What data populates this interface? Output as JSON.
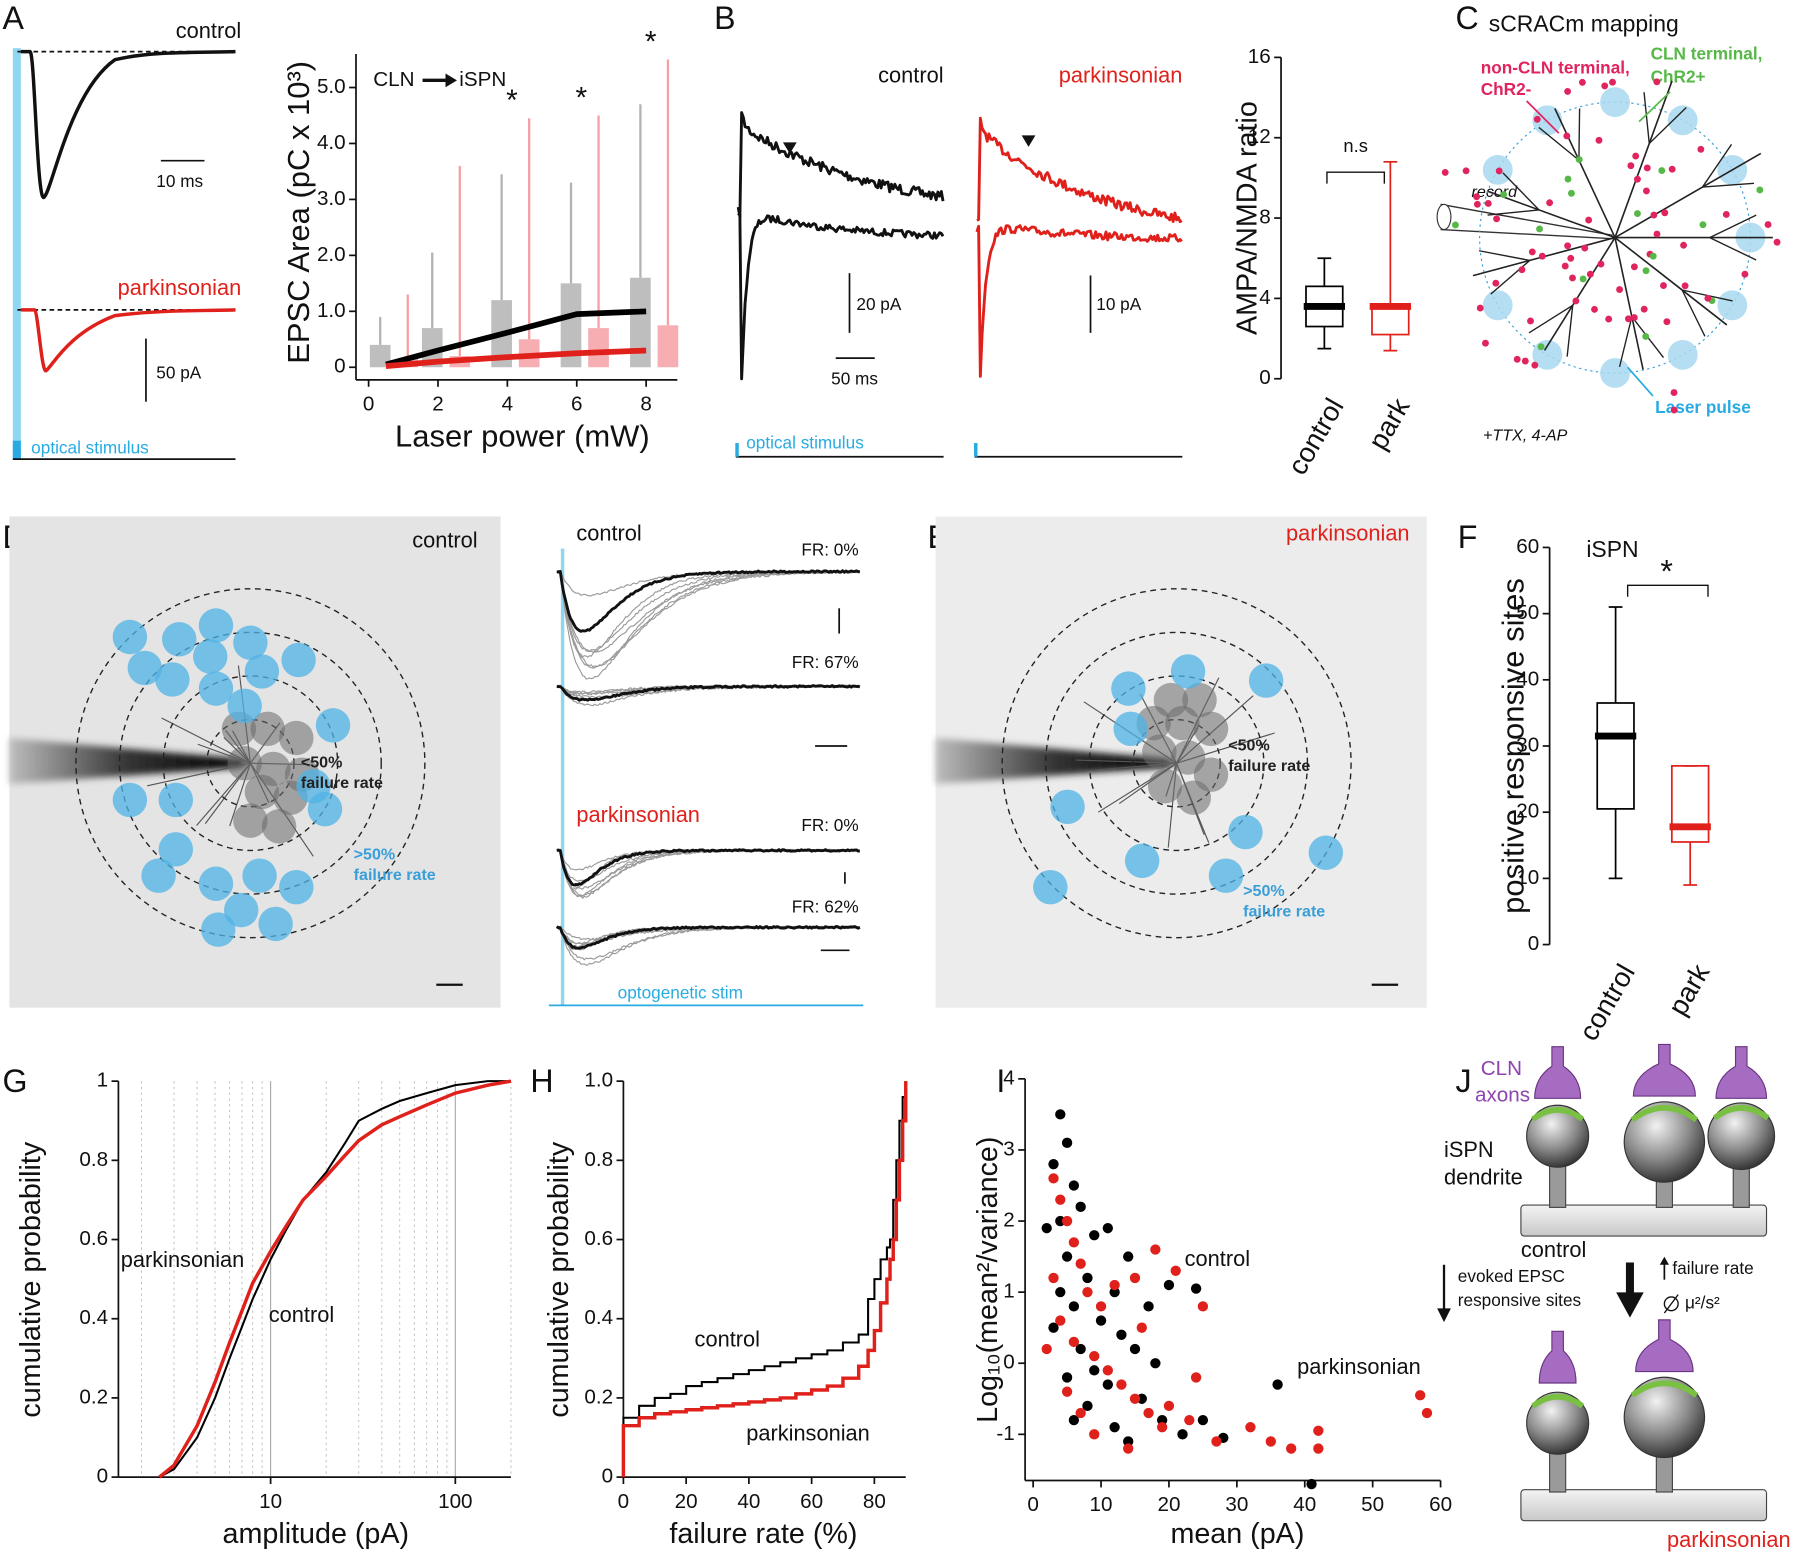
{
  "panels": [
    "A",
    "B",
    "C",
    "D",
    "E",
    "F",
    "G",
    "H",
    "I",
    "J"
  ],
  "panel_a": {
    "control": "control",
    "scale_time": "10 ms",
    "parkinsonian": "parkinsonian",
    "scale_amp": "50 pA",
    "stimulus": "optical stimulus"
  },
  "panel_b": {
    "control": "control",
    "parkinsonian": "parkinsonian",
    "scale_amp_control": "20 pA",
    "scale_time": "50 ms",
    "scale_amp_park": "10 pA",
    "stimulus": "optical stimulus"
  },
  "panel_c": {
    "title": "sCRACm mapping",
    "non_cln": [
      "non-CLN terminal,",
      "ChR2-"
    ],
    "cln": [
      "CLN terminal,",
      "ChR2+"
    ],
    "record": "record",
    "laser": "Laser pulse",
    "drugs": "+TTX, 4-AP"
  },
  "panel_d": {
    "condition": "control",
    "inner": [
      "<50%",
      "failure rate"
    ],
    "outer": [
      ">50%",
      "failure rate"
    ]
  },
  "panel_d_traces": {
    "control": "control",
    "fr": [
      "FR: 0%",
      "FR: 67%",
      "FR: 0%",
      "FR: 62%"
    ],
    "parkinsonian": "parkinsonian",
    "stimulus": "optogenetic stim"
  },
  "panel_e": {
    "condition": "parkinsonian",
    "inner": [
      "<50%",
      "failure rate"
    ],
    "outer": [
      ">50%",
      "failure rate"
    ]
  },
  "panel_j": {
    "cln": [
      "CLN",
      "axons"
    ],
    "dendrite": [
      "iSPN",
      "dendrite"
    ],
    "control": "control",
    "evoked": [
      "evoked EPSC",
      "responsive sites"
    ],
    "failure": "failure rate",
    "ratio": "μ²/s²",
    "parkinsonian": "parkinsonian"
  },
  "chart_data": [
    {
      "type": "bar",
      "label_from": "CLN",
      "label_to": "iSPN",
      "ylabel": "EPSC Area (pC x 10³)",
      "xlabel": "Laser power (mW)",
      "x": [
        0.5,
        2,
        4,
        6,
        8
      ],
      "series": [
        {
          "mark": "bar",
          "color": "#b3b3b3",
          "values": [
            0.4,
            0.7,
            1.2,
            1.5,
            1.6
          ],
          "upper": [
            0.9,
            2.05,
            3.45,
            3.3,
            4.7
          ]
        },
        {
          "mark": "bar",
          "color": "#f4a0a6",
          "values": [
            0.15,
            0.2,
            0.5,
            0.7,
            0.75
          ],
          "upper": [
            1.3,
            3.6,
            4.45,
            4.5,
            5.5
          ]
        },
        {
          "mark": "line",
          "color": "#000000",
          "values": [
            0.05,
            0.3,
            0.62,
            0.95,
            1.0
          ]
        },
        {
          "mark": "line",
          "color": "#e0201b",
          "values": [
            0.02,
            0.1,
            0.18,
            0.25,
            0.3
          ]
        }
      ],
      "annotations": [
        "*",
        "*",
        "*"
      ],
      "xlim": [
        0,
        8.9
      ],
      "xticks": [
        0,
        2,
        4,
        6,
        8
      ],
      "ylim": [
        0,
        5.6
      ],
      "yticks": [
        0,
        {
          "value": 1,
          "label": "1.0"
        },
        {
          "value": 2,
          "label": "2.0"
        },
        {
          "value": 3,
          "label": "3.0"
        },
        {
          "value": 4,
          "label": "4.0"
        },
        {
          "value": 5,
          "label": "5.0"
        }
      ]
    },
    {
      "type": "box",
      "ylabel": "AMPA/NMDA ratio",
      "categories": [
        "control",
        "park"
      ],
      "colors": [
        "#000000",
        "#e0201b"
      ],
      "min": [
        1.5,
        1.4
      ],
      "q1": [
        2.6,
        2.2
      ],
      "median": [
        3.6,
        3.6
      ],
      "q3": [
        4.6,
        3.6
      ],
      "max": [
        6.0,
        10.8
      ],
      "annotation": "n.s",
      "ylim": [
        0,
        16
      ],
      "yticks": [
        0,
        4,
        8,
        12,
        16
      ]
    },
    {
      "type": "box",
      "title": "iSPN",
      "ylabel": "positive responsive sites",
      "categories": [
        "control",
        "park"
      ],
      "colors": [
        "#000000",
        "#e0201b"
      ],
      "min": [
        10,
        9
      ],
      "q1": [
        20.5,
        15.5
      ],
      "median": [
        31.5,
        17.8
      ],
      "q3": [
        36.5,
        27
      ],
      "max": [
        51,
        27
      ],
      "annotation": "*",
      "ylim": [
        0,
        60
      ],
      "yticks": [
        0,
        10,
        20,
        30,
        40,
        50,
        60
      ]
    },
    {
      "type": "line",
      "log_x": true,
      "grid": true,
      "xlabel": "amplitude (pA)",
      "ylabel": "cumulative probability",
      "x": [
        2.5,
        3,
        4,
        5,
        6,
        7,
        8,
        10,
        12,
        15,
        20,
        25,
        30,
        40,
        50,
        70,
        100,
        150,
        200
      ],
      "series": [
        {
          "name": "control",
          "color": "#000000",
          "values": [
            0,
            0.02,
            0.1,
            0.2,
            0.3,
            0.38,
            0.45,
            0.55,
            0.62,
            0.7,
            0.77,
            0.84,
            0.9,
            0.93,
            0.95,
            0.97,
            0.99,
            1.0,
            1.0
          ]
        },
        {
          "name": "parkinsonian",
          "color": "#e0201b",
          "values": [
            0,
            0.03,
            0.13,
            0.24,
            0.34,
            0.42,
            0.49,
            0.57,
            0.63,
            0.7,
            0.76,
            0.81,
            0.85,
            0.89,
            0.91,
            0.94,
            0.97,
            0.99,
            1.0
          ]
        }
      ],
      "xlim": [
        1.5,
        200
      ],
      "xticks": [
        10,
        100
      ],
      "minor_xticks": [
        2,
        3,
        4,
        5,
        6,
        7,
        8,
        9,
        20,
        30,
        40,
        50,
        60,
        70,
        80,
        90,
        200
      ],
      "ylim": [
        0,
        1
      ],
      "yticks": [
        0,
        0.2,
        0.4,
        0.6,
        0.8,
        1
      ]
    },
    {
      "type": "step",
      "xlabel": "failure rate (%)",
      "ylabel": "cumulative probability",
      "x": [
        0,
        5,
        10,
        15,
        20,
        25,
        30,
        35,
        40,
        45,
        50,
        55,
        60,
        65,
        70,
        75,
        78,
        80,
        82,
        84,
        85,
        86,
        87,
        88,
        89,
        90
      ],
      "series": [
        {
          "name": "control",
          "color": "#000000",
          "values": [
            0.15,
            0.18,
            0.2,
            0.21,
            0.23,
            0.24,
            0.25,
            0.26,
            0.27,
            0.28,
            0.29,
            0.3,
            0.31,
            0.32,
            0.34,
            0.36,
            0.45,
            0.5,
            0.55,
            0.58,
            0.6,
            0.7,
            0.8,
            0.9,
            0.96,
            1.0
          ]
        },
        {
          "name": "parkinsonian",
          "color": "#e0201b",
          "values": [
            0.13,
            0.15,
            0.16,
            0.165,
            0.17,
            0.175,
            0.18,
            0.185,
            0.19,
            0.195,
            0.2,
            0.21,
            0.22,
            0.23,
            0.25,
            0.28,
            0.32,
            0.37,
            0.44,
            0.5,
            0.55,
            0.6,
            0.7,
            0.8,
            0.9,
            1.0
          ]
        }
      ],
      "xlim": [
        0,
        90
      ],
      "xticks": [
        0,
        20,
        40,
        60,
        80
      ],
      "ylim": [
        0,
        1
      ],
      "yticks": [
        0,
        0.2,
        0.4,
        0.6,
        0.8,
        {
          "value": 1,
          "label": "1.0"
        }
      ]
    },
    {
      "type": "scatter",
      "xlabel": "mean (pA)",
      "ylabel": "Log₁₀(mean²/variance)",
      "series": [
        {
          "name": "control",
          "color": "#000000",
          "x": [
            4,
            5,
            3,
            6,
            7,
            4,
            9,
            11,
            5,
            8,
            12,
            14,
            20,
            24,
            6,
            10,
            13,
            15,
            18,
            3,
            7,
            9,
            11,
            16,
            19,
            22,
            25,
            28,
            36,
            41,
            5,
            8,
            12,
            14,
            4,
            2,
            17,
            6
          ],
          "values": [
            3.5,
            3.1,
            2.8,
            2.5,
            2.2,
            2.0,
            1.8,
            1.9,
            1.5,
            1.2,
            1.0,
            1.5,
            1.1,
            1.05,
            0.8,
            0.6,
            0.4,
            0.2,
            0.0,
            0.5,
            0.2,
            -0.1,
            -0.3,
            -0.5,
            -0.8,
            -1.0,
            -0.8,
            -1.05,
            -0.3,
            -1.7,
            -0.2,
            -0.6,
            -0.9,
            -1.1,
            1.0,
            1.9,
            0.8,
            -0.8
          ]
        },
        {
          "name": "parkinsonian",
          "color": "#e0201b",
          "x": [
            3,
            4,
            5,
            6,
            7,
            3,
            8,
            10,
            12,
            15,
            18,
            21,
            25,
            4,
            6,
            9,
            11,
            13,
            15,
            17,
            19,
            5,
            7,
            9,
            14,
            20,
            23,
            27,
            32,
            35,
            38,
            42,
            42,
            57,
            58,
            2,
            16,
            24
          ],
          "values": [
            2.6,
            2.3,
            2.0,
            1.7,
            1.4,
            1.2,
            1.0,
            0.8,
            1.1,
            1.2,
            1.6,
            1.3,
            0.8,
            0.6,
            0.3,
            0.1,
            -0.1,
            -0.3,
            -0.5,
            -0.7,
            -0.9,
            -0.4,
            -0.7,
            -1.0,
            -1.2,
            -0.6,
            -0.8,
            -1.1,
            -0.9,
            -1.1,
            -1.2,
            -0.95,
            -1.2,
            -0.45,
            -0.7,
            0.2,
            0.5,
            -0.2
          ]
        }
      ],
      "xlim": [
        0,
        60
      ],
      "xticks": [
        0,
        10,
        20,
        30,
        40,
        50,
        60
      ],
      "ylim": [
        -1.65,
        4
      ],
      "yticks": [
        -1,
        0,
        1,
        2,
        3,
        4
      ]
    }
  ]
}
